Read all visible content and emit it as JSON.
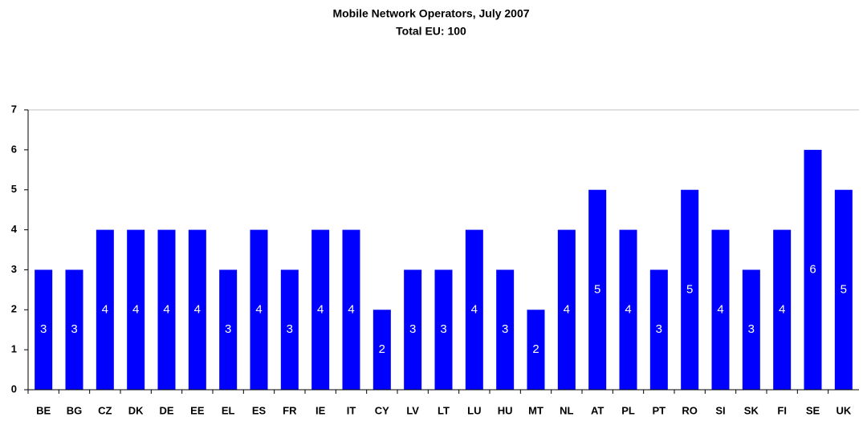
{
  "chart_data": {
    "type": "bar",
    "title": "Mobile Network Operators, July 2007",
    "subtitle": "Total EU: 100",
    "categories": [
      "BE",
      "BG",
      "CZ",
      "DK",
      "DE",
      "EE",
      "EL",
      "ES",
      "FR",
      "IE",
      "IT",
      "CY",
      "LV",
      "LT",
      "LU",
      "HU",
      "MT",
      "NL",
      "AT",
      "PL",
      "PT",
      "RO",
      "SI",
      "SK",
      "FI",
      "SE",
      "UK"
    ],
    "values": [
      3,
      3,
      4,
      4,
      4,
      4,
      3,
      4,
      3,
      4,
      4,
      2,
      3,
      3,
      4,
      3,
      2,
      4,
      5,
      4,
      3,
      5,
      4,
      3,
      4,
      6,
      5
    ],
    "color": "#0000ff",
    "ylim": [
      0,
      7
    ],
    "yticks": [
      0,
      1,
      2,
      3,
      4,
      5,
      6,
      7
    ],
    "grid": false
  }
}
